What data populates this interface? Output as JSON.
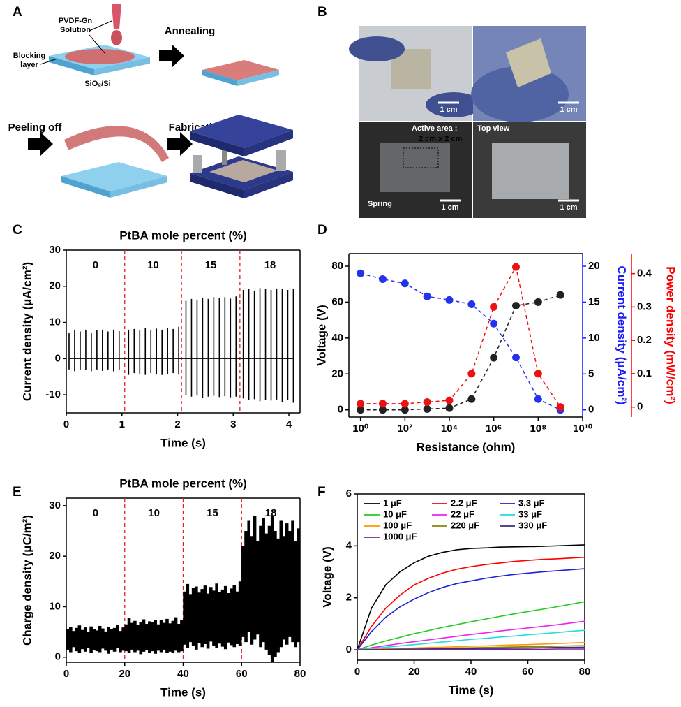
{
  "panel_a": {
    "label": "A",
    "solution": [
      "PVDF-Gn",
      "Solution"
    ],
    "blocking": [
      "Blocking",
      "layer"
    ],
    "substrate": "SiO₂/Si",
    "steps": [
      "Annealing",
      "Peeling off",
      "Fabrication"
    ]
  },
  "panel_b": {
    "label": "B",
    "scale_bars": [
      "1 cm",
      "1 cm",
      "1 cm",
      "1 cm"
    ],
    "active_area": [
      "Active area :",
      "2 cm x 2 cm"
    ],
    "top_view": "Top view",
    "spring": "Spring"
  },
  "chart_data": [
    {
      "type": "spike",
      "panel_label": "C",
      "title": "PtBA mole percent (%)",
      "xlabel": "Time (s)",
      "ylabel": "Current density (μA/cm²)",
      "xlim": [
        0,
        4.2
      ],
      "xticks": [
        0,
        1,
        2,
        3,
        4
      ],
      "ylim": [
        -15,
        30
      ],
      "yticks": [
        -10,
        0,
        10,
        20,
        30
      ],
      "dividers": [
        1.05,
        2.07,
        3.12
      ],
      "divider_color": "#e02020",
      "segment_labels": [
        "0",
        "10",
        "15",
        "18"
      ],
      "zero_line": true,
      "x": [
        0.05,
        0.15,
        0.25,
        0.35,
        0.45,
        0.55,
        0.65,
        0.75,
        0.85,
        0.95,
        1.12,
        1.22,
        1.32,
        1.42,
        1.52,
        1.62,
        1.72,
        1.82,
        1.92,
        2.02,
        2.15,
        2.25,
        2.35,
        2.45,
        2.55,
        2.65,
        2.75,
        2.85,
        2.95,
        3.05,
        3.18,
        3.28,
        3.38,
        3.48,
        3.58,
        3.68,
        3.78,
        3.88,
        3.98,
        4.08
      ],
      "series": [
        {
          "color": "#000000",
          "values": [
            7,
            8,
            7.5,
            8,
            7,
            7.8,
            8,
            7.5,
            8,
            7.6,
            8,
            8.2,
            7.8,
            8.5,
            8,
            8.3,
            8,
            8.5,
            8.2,
            8.8,
            16,
            16.5,
            16.3,
            16.8,
            16.5,
            17,
            16.8,
            17,
            16.6,
            17.2,
            19,
            19.2,
            18.8,
            19.5,
            19.3,
            19,
            19.4,
            19.2,
            19,
            19.3
          ]
        },
        {
          "color": "#000000",
          "values": [
            -3,
            -3.5,
            -3,
            -3.2,
            -3.5,
            -3,
            -3.4,
            -3,
            -3.5,
            -3.2,
            -4.5,
            -4,
            -4.2,
            -4.5,
            -4,
            -4.3,
            -4.5,
            -4.2,
            -4,
            -4.4,
            -10,
            -10.5,
            -10.2,
            -10.8,
            -10.5,
            -10.3,
            -10.6,
            -10.4,
            -10.7,
            -10.5,
            -11,
            -11.5,
            -11.2,
            -11.8,
            -11.4,
            -11.6,
            -11.3,
            -12,
            -11.5,
            -12.2
          ]
        }
      ]
    },
    {
      "type": "scatter",
      "panel_label": "D",
      "xlabel": "Resistance (ohm)",
      "ylabel": "Voltage (V)",
      "y2label": "Current density (μA/cm²)",
      "y3label": "Power density (mW/cm²)",
      "xlog": true,
      "xlim": [
        0.3,
        10000000000
      ],
      "xticks": [
        {
          "value": 1,
          "label": "10⁰"
        },
        {
          "value": 100,
          "label": "10²"
        },
        {
          "value": 10000,
          "label": "10⁴"
        },
        {
          "value": 1000000,
          "label": "10⁶"
        },
        {
          "value": 100000000,
          "label": "10⁸"
        },
        {
          "value": 10000000000,
          "label": "10¹⁰"
        }
      ],
      "ylim": [
        -4,
        87
      ],
      "yticks": [
        0,
        20,
        40,
        60,
        80
      ],
      "y2lim": [
        -1,
        21.75
      ],
      "y2ticks": [
        0,
        5,
        10,
        15,
        20
      ],
      "y2color": "#1a1aff",
      "y3lim": [
        -0.03,
        0.46
      ],
      "y3ticks": [
        0,
        0.1,
        0.2,
        0.3,
        0.4
      ],
      "y3color": "#ff0000",
      "x": [
        1,
        10,
        100,
        1000,
        10000,
        100000,
        1000000,
        10000000,
        100000000,
        1000000000
      ],
      "series": [
        {
          "color": "#222222",
          "values": [
            0,
            0,
            0,
            0.5,
            1,
            6,
            29,
            58,
            60,
            64
          ]
        },
        {
          "color": "#2233ee",
          "axis": "y2",
          "values": [
            19,
            18.2,
            17.6,
            15.8,
            15.3,
            14.7,
            12,
            7.3,
            1.5,
            0
          ]
        },
        {
          "color": "#ee1111",
          "axis": "y3",
          "values": [
            0.01,
            0.01,
            0.01,
            0.015,
            0.02,
            0.1,
            0.3,
            0.42,
            0.1,
            0
          ]
        }
      ]
    },
    {
      "type": "band",
      "panel_label": "E",
      "title": "PtBA mole percent (%)",
      "xlabel": "Time (s)",
      "ylabel": "Charge density (μC/m²)",
      "xlim": [
        0,
        80
      ],
      "xticks": [
        0,
        20,
        40,
        60,
        80
      ],
      "ylim": [
        -1,
        31.5
      ],
      "yticks": [
        0,
        10,
        20,
        30
      ],
      "dividers": [
        20,
        40,
        60
      ],
      "divider_color": "#e02020",
      "segment_labels": [
        "0",
        "10",
        "15",
        "18"
      ],
      "x": [
        0.5,
        1.5,
        2.5,
        3.5,
        4.5,
        5.5,
        6.5,
        7.5,
        8.5,
        9.5,
        10.5,
        11.5,
        12.5,
        13.5,
        14.5,
        15.5,
        16.5,
        17.5,
        18.5,
        19.5,
        20.5,
        21.5,
        22.5,
        23.5,
        24.5,
        25.5,
        26.5,
        27.5,
        28.5,
        29.5,
        30.5,
        31.5,
        32.5,
        33.5,
        34.5,
        35.5,
        36.5,
        37.5,
        38.5,
        39.5,
        40.5,
        41.5,
        42.5,
        43.5,
        44.5,
        45.5,
        46.5,
        47.5,
        48.5,
        49.5,
        50.5,
        51.5,
        52.5,
        53.5,
        54.5,
        55.5,
        56.5,
        57.5,
        58.5,
        59.5,
        60.5,
        61.5,
        62.5,
        63.5,
        64.5,
        65.5,
        66.5,
        67.5,
        68.5,
        69.5,
        70.5,
        71.5,
        72.5,
        73.5,
        74.5,
        75.5,
        76.5,
        77.5,
        78.5,
        79.5
      ],
      "series": [
        {
          "color": "#000000",
          "values": [
            5.5,
            6,
            5.2,
            5.8,
            6.3,
            5.4,
            5.9,
            5,
            6.1,
            5.6,
            5.3,
            6.2,
            5.7,
            5.1,
            6,
            5.5,
            5.8,
            6.4,
            5.2,
            5.9,
            6.5,
            7.8,
            6.8,
            7.2,
            6.4,
            7,
            7.5,
            6.6,
            7.1,
            6.9,
            7.4,
            6.5,
            7.3,
            6.8,
            7.6,
            6.7,
            7.2,
            7.9,
            6.6,
            7.4,
            13,
            14.5,
            12.5,
            13.8,
            14,
            12.8,
            13.5,
            14.2,
            12.6,
            13.9,
            13.2,
            14.6,
            12.9,
            13.4,
            14.1,
            12.7,
            13.6,
            14.3,
            13,
            15,
            22,
            25,
            27,
            24,
            28,
            23,
            26,
            27.5,
            24.5,
            26,
            28,
            25,
            23.5,
            27,
            24,
            26.5,
            25,
            27,
            23,
            25.5
          ]
        },
        {
          "color": "#000000",
          "values": [
            1.5,
            1,
            2,
            1.2,
            0.8,
            1.6,
            1.1,
            1.8,
            0.9,
            1.4,
            1.2,
            1,
            1.7,
            1.3,
            0.7,
            1.5,
            1.1,
            1.9,
            1,
            1.3,
            1.2,
            0.8,
            1.5,
            1,
            1.3,
            0.6,
            1.1,
            1.4,
            0.9,
            1.2,
            0.7,
            1.3,
            1,
            1.5,
            0.8,
            1.1,
            0.9,
            1.3,
            1,
            1.2,
            2.5,
            1.8,
            3,
            2.2,
            1.5,
            2.8,
            2,
            2.6,
            1.7,
            3.1,
            2.3,
            1.9,
            2.7,
            2.1,
            1.6,
            2.9,
            2.4,
            2,
            2.6,
            2.2,
            4,
            3,
            5,
            2.5,
            3.5,
            4.5,
            2,
            3,
            1.5,
            0.5,
            -1,
            0,
            1,
            2,
            3.5,
            2.5,
            4,
            3,
            2,
            3
          ]
        }
      ]
    },
    {
      "type": "line",
      "panel_label": "F",
      "xlabel": "Time (s)",
      "ylabel": "Voltage (V)",
      "legend": "upper left",
      "xlim": [
        0,
        80
      ],
      "xticks": [
        0,
        20,
        40,
        60,
        80
      ],
      "ylim": [
        -0.4,
        6
      ],
      "yticks": [
        0,
        2,
        4,
        6
      ],
      "x": [
        0,
        5,
        10,
        15,
        20,
        25,
        30,
        35,
        40,
        45,
        50,
        55,
        60,
        65,
        70,
        75,
        80
      ],
      "series": [
        {
          "name": "1 μF",
          "color": "#000000",
          "values": [
            0,
            1.6,
            2.5,
            3.0,
            3.35,
            3.6,
            3.75,
            3.85,
            3.9,
            3.92,
            3.95,
            3.96,
            3.97,
            3.98,
            4.0,
            4.02,
            4.04
          ]
        },
        {
          "name": "2.2 μF",
          "color": "#ff0000",
          "values": [
            0,
            0.9,
            1.6,
            2.1,
            2.5,
            2.75,
            2.95,
            3.1,
            3.2,
            3.28,
            3.34,
            3.4,
            3.44,
            3.48,
            3.5,
            3.53,
            3.56
          ]
        },
        {
          "name": "3.3 μF",
          "color": "#1f1fcf",
          "values": [
            0,
            0.7,
            1.25,
            1.65,
            1.95,
            2.2,
            2.4,
            2.55,
            2.65,
            2.75,
            2.83,
            2.9,
            2.95,
            3.0,
            3.04,
            3.08,
            3.12
          ]
        },
        {
          "name": "10 μF",
          "color": "#22cc22",
          "values": [
            0,
            0.18,
            0.34,
            0.48,
            0.62,
            0.74,
            0.86,
            0.97,
            1.08,
            1.18,
            1.28,
            1.38,
            1.47,
            1.56,
            1.65,
            1.75,
            1.85
          ]
        },
        {
          "name": "22 μF",
          "color": "#ee22ee",
          "values": [
            0,
            0.08,
            0.16,
            0.24,
            0.31,
            0.38,
            0.45,
            0.52,
            0.59,
            0.65,
            0.72,
            0.78,
            0.84,
            0.9,
            0.96,
            1.03,
            1.1
          ]
        },
        {
          "name": "33 μF",
          "color": "#22dddd",
          "values": [
            0,
            0.05,
            0.1,
            0.15,
            0.2,
            0.25,
            0.3,
            0.35,
            0.4,
            0.44,
            0.49,
            0.53,
            0.58,
            0.62,
            0.66,
            0.71,
            0.75
          ]
        },
        {
          "name": "100 μF",
          "color": "#ff9900",
          "values": [
            0,
            0.02,
            0.04,
            0.05,
            0.07,
            0.09,
            0.1,
            0.12,
            0.14,
            0.15,
            0.17,
            0.19,
            0.2,
            0.22,
            0.24,
            0.26,
            0.28
          ]
        },
        {
          "name": "220 μF",
          "color": "#888800",
          "values": [
            0,
            0.01,
            0.02,
            0.03,
            0.04,
            0.05,
            0.06,
            0.07,
            0.08,
            0.09,
            0.1,
            0.11,
            0.12,
            0.13,
            0.14,
            0.15,
            0.16
          ]
        },
        {
          "name": "330 μF",
          "color": "#333377",
          "values": [
            0,
            0.01,
            0.01,
            0.02,
            0.02,
            0.03,
            0.04,
            0.04,
            0.05,
            0.06,
            0.06,
            0.07,
            0.07,
            0.08,
            0.09,
            0.09,
            0.1
          ]
        },
        {
          "name": "1000 μF",
          "color": "#7a1fa0",
          "values": [
            0,
            0,
            0,
            0,
            0.01,
            0.01,
            0.01,
            0.01,
            0.01,
            0.02,
            0.02,
            0.02,
            0.02,
            0.02,
            0.03,
            0.03,
            0.03
          ]
        }
      ]
    }
  ]
}
